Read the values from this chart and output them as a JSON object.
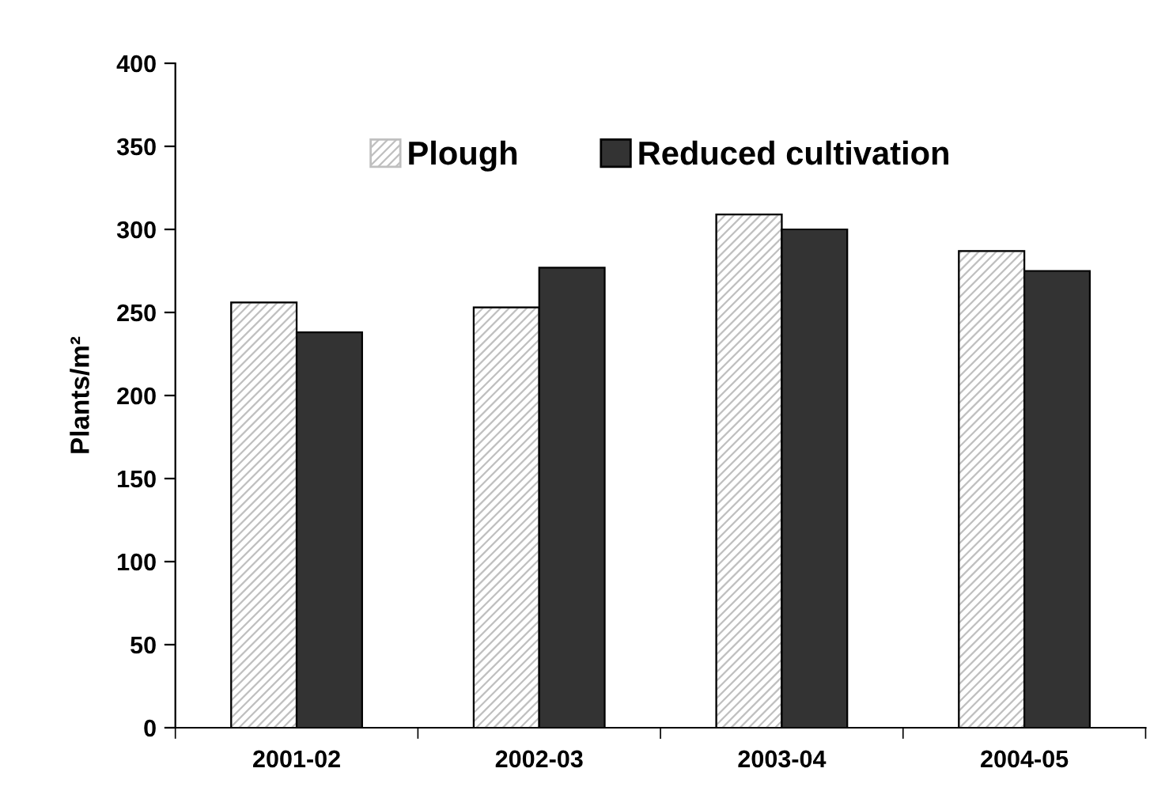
{
  "chart_data": {
    "type": "bar",
    "ylabel": "Plants/m²",
    "categories": [
      "2001-02",
      "2002-03",
      "2003-04",
      "2004-05"
    ],
    "series": [
      {
        "name": "Plough",
        "color": "#bfbfbf",
        "values": [
          256,
          253,
          309,
          287
        ]
      },
      {
        "name": "Reduced cultivation",
        "color": "#333333",
        "values": [
          238,
          277,
          300,
          275
        ]
      }
    ],
    "ylim": [
      0,
      400
    ],
    "yticks": [
      0,
      50,
      100,
      150,
      200,
      250,
      300,
      350,
      400
    ],
    "grid": false,
    "legend": "top"
  }
}
